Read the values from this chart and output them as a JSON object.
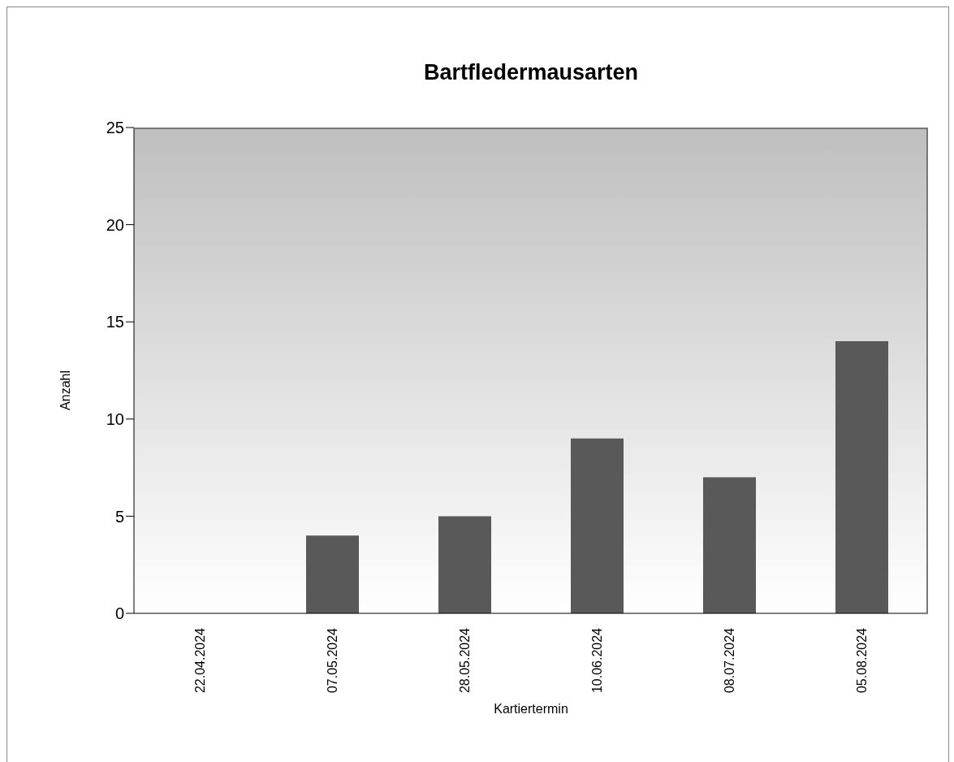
{
  "chart_data": {
    "type": "bar",
    "title": "Bartfledermausarten",
    "xlabel": "Kartiertermin",
    "ylabel": "Anzahl",
    "categories": [
      "22.04.2024",
      "07.05.2024",
      "28.05.2024",
      "10.06.2024",
      "08.07.2024",
      "05.08.2024"
    ],
    "values": [
      0,
      4,
      5,
      9,
      7,
      14
    ],
    "color": "#595959",
    "ylim": [
      0,
      25
    ],
    "yticks": [
      0,
      5,
      10,
      15,
      20,
      25
    ],
    "grid": false,
    "legend": false
  }
}
